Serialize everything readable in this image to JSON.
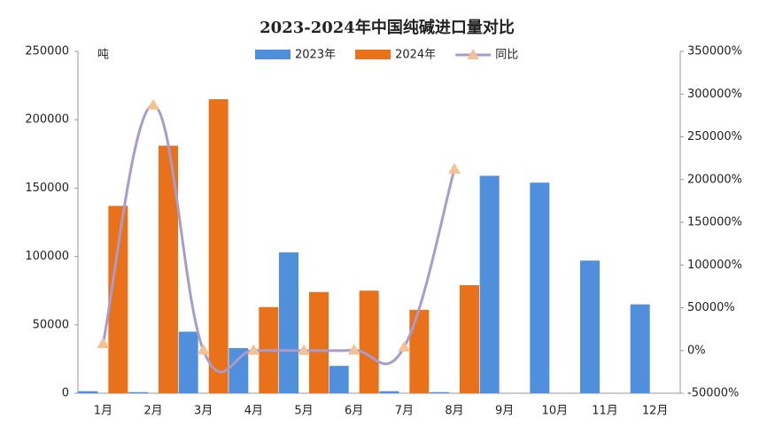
{
  "chart_data": {
    "type": "bar_line",
    "title": "2023-2024年中国纯碱进口量对比",
    "y_label": "吨",
    "categories": [
      "1月",
      "2月",
      "3月",
      "4月",
      "5月",
      "6月",
      "7月",
      "8月",
      "9月",
      "10月",
      "11月",
      "12月"
    ],
    "series": [
      {
        "name": "2023年",
        "type": "bar",
        "color": "#4f8fdc",
        "values": [
          1500,
          800,
          45000,
          33000,
          103000,
          20000,
          1500,
          800,
          159000,
          154000,
          97000,
          65000
        ]
      },
      {
        "name": "2024年",
        "type": "bar",
        "color": "#e8711a",
        "values": [
          137000,
          181000,
          215000,
          63000,
          74000,
          75000,
          61000,
          79000,
          null,
          null,
          null,
          null
        ]
      },
      {
        "name": "同比",
        "type": "line",
        "axis": "y2",
        "color": "#a99ccb",
        "marker_color": "#f5c193",
        "values": [
          8000,
          287000,
          378,
          91,
          -28,
          275,
          4000,
          212000,
          null,
          null,
          null,
          null
        ]
      }
    ],
    "ylim": [
      0,
      250000
    ],
    "yticks": [
      0,
      50000,
      100000,
      150000,
      200000,
      250000
    ],
    "y2lim": [
      -50000,
      350000
    ],
    "y2ticks": [
      {
        "value": -50000,
        "label": "-50000%"
      },
      {
        "value": 0,
        "label": "0%"
      },
      {
        "value": 50000,
        "label": "50000%"
      },
      {
        "value": 100000,
        "label": "100000%"
      },
      {
        "value": 150000,
        "label": "150000%"
      },
      {
        "value": 200000,
        "label": "200000%"
      },
      {
        "value": 250000,
        "label": "250000%"
      },
      {
        "value": 300000,
        "label": "300000%"
      },
      {
        "value": 350000,
        "label": "350000%"
      }
    ],
    "grid": false,
    "legend": "top"
  }
}
